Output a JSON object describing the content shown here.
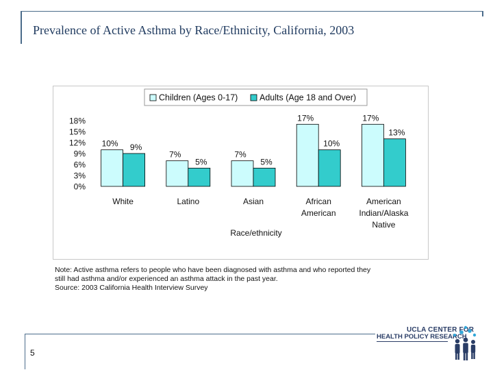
{
  "slide": {
    "title": "Prevalence of Active Asthma by Race/Ethnicity, California, 2003",
    "page_number": "5",
    "note_lines": [
      "Note: Active asthma refers to people who have been diagnosed with asthma and who reported they",
      "still had asthma and/or experienced an asthma attack in the past year.",
      "Source: 2003 California Health Interview Survey"
    ],
    "logo": {
      "line1": "UCLA CENTER FOR",
      "line2": "HEALTH POLICY RESEARCH",
      "icon": "people-group-icon"
    }
  },
  "chart_data": {
    "type": "bar",
    "title": "",
    "xlabel": "Race/ethnicity",
    "ylabel": "",
    "ylim": [
      0,
      18
    ],
    "yticks": [
      "0%",
      "3%",
      "6%",
      "9%",
      "12%",
      "15%",
      "18%"
    ],
    "ytick_values": [
      0,
      3,
      6,
      9,
      12,
      15,
      18
    ],
    "categories": [
      [
        "White"
      ],
      [
        "Latino"
      ],
      [
        "Asian"
      ],
      [
        "African",
        "American"
      ],
      [
        "American",
        "Indian/Alaska",
        "Native"
      ]
    ],
    "series": [
      {
        "name": "Children (Ages 0-17)",
        "color": "#ccfcfd",
        "values": [
          10,
          7,
          7,
          17,
          17
        ],
        "labels": [
          "10%",
          "7%",
          "7%",
          "17%",
          "17%"
        ]
      },
      {
        "name": "Adults (Age 18 and Over)",
        "color": "#33cccc",
        "values": [
          9,
          5,
          5,
          10,
          13
        ],
        "labels": [
          "9%",
          "5%",
          "5%",
          "10%",
          "13%"
        ]
      }
    ],
    "legend_position": "top",
    "grid": false
  }
}
